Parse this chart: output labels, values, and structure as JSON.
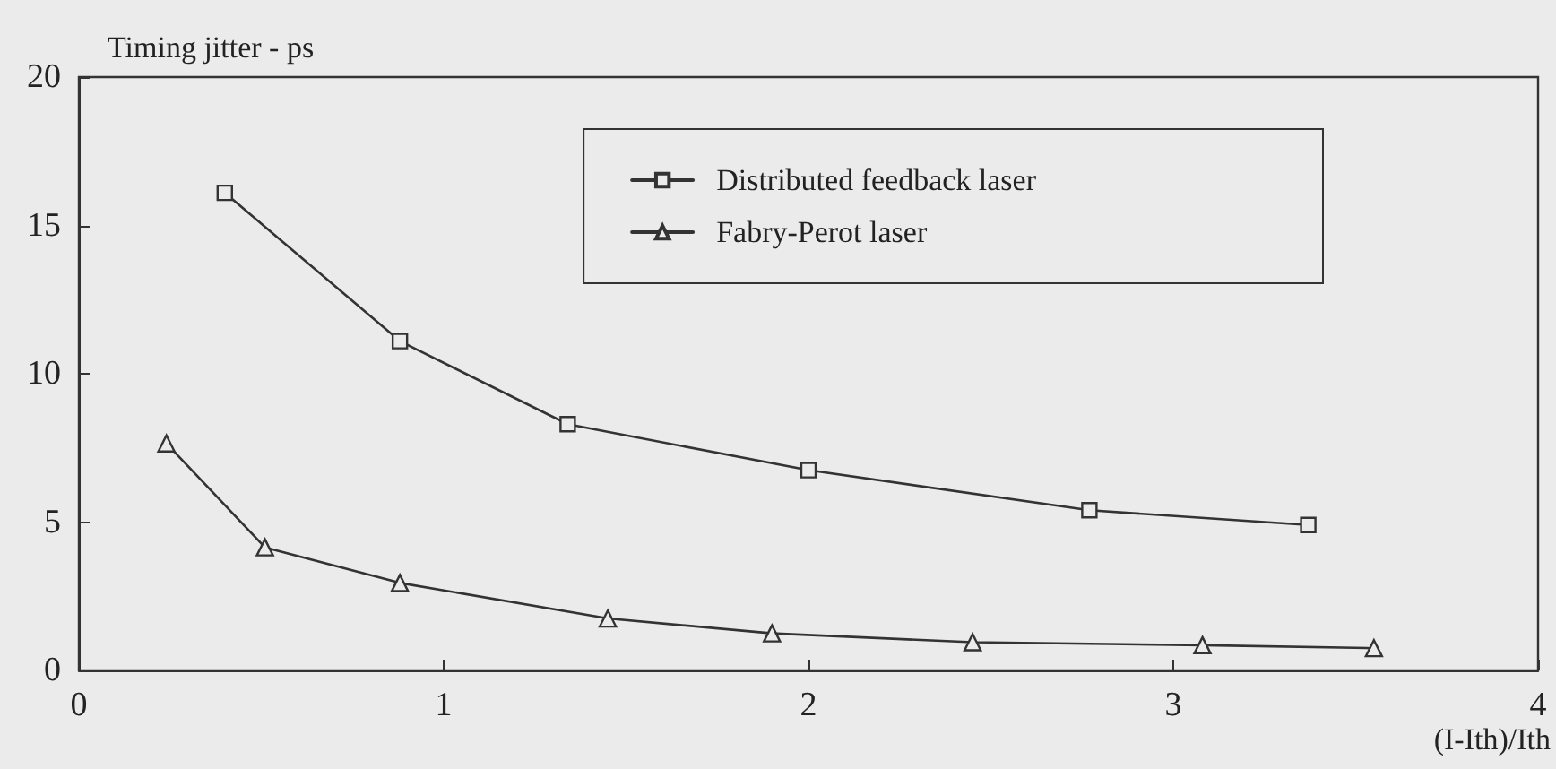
{
  "chart_data": {
    "type": "line",
    "xlabel": "(I-Ith)/Ith",
    "ylabel": "Timing jitter - ps",
    "xlim": [
      0,
      4
    ],
    "xticks": [
      0,
      1,
      2,
      3,
      4
    ],
    "ylim": [
      0,
      20
    ],
    "yticks": [
      0,
      5,
      10,
      15,
      20
    ],
    "grid": false,
    "legend": "top right",
    "line_style": "solid",
    "series": [
      {
        "name": "Distributed feedback laser",
        "color": "#333333",
        "marker": "square",
        "x": [
          0.4,
          0.88,
          1.34,
          2.0,
          2.77,
          3.37
        ],
        "values": [
          16.1,
          11.1,
          8.3,
          6.75,
          5.4,
          4.9
        ]
      },
      {
        "name": "Fabry-Perot laser",
        "color": "#333333",
        "marker": "triangle",
        "x": [
          0.24,
          0.51,
          0.88,
          1.45,
          1.9,
          2.45,
          3.08,
          3.55
        ],
        "values": [
          7.65,
          4.15,
          2.95,
          1.75,
          1.25,
          0.95,
          0.85,
          0.75
        ]
      }
    ]
  }
}
